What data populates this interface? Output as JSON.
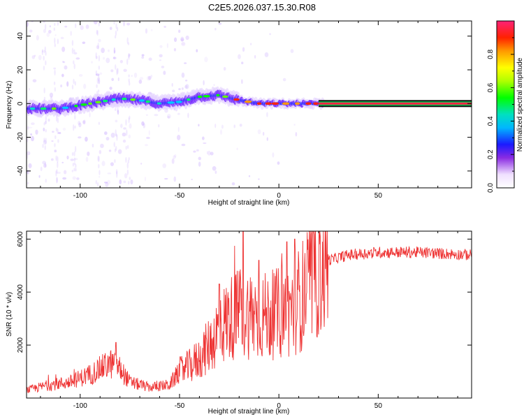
{
  "title": "C2E5.2026.037.15.30.R08",
  "chart_data": [
    {
      "type": "heatmap",
      "xlabel": "Height of straight line (km)",
      "ylabel": "Frequency (Hz)",
      "xlim": [
        -127,
        97
      ],
      "ylim": [
        -50,
        49
      ],
      "xticks": [
        -100,
        -50,
        0,
        50
      ],
      "yticks": [
        -40,
        -20,
        0,
        20,
        40
      ],
      "ridge": [
        {
          "x": -125,
          "y": -3
        },
        {
          "x": -110,
          "y": -3
        },
        {
          "x": -95,
          "y": 0
        },
        {
          "x": -80,
          "y": 3
        },
        {
          "x": -70,
          "y": 2
        },
        {
          "x": -60,
          "y": 0
        },
        {
          "x": -50,
          "y": 1
        },
        {
          "x": -40,
          "y": 4
        },
        {
          "x": -30,
          "y": 5
        },
        {
          "x": -20,
          "y": 2
        },
        {
          "x": -10,
          "y": 0
        },
        {
          "x": 0,
          "y": 0
        },
        {
          "x": 20,
          "y": 0
        },
        {
          "x": 95,
          "y": 0
        }
      ],
      "colorbar": {
        "label": "Normalized spectral amplitude",
        "range": [
          0,
          1
        ],
        "ticks": [
          "0.0",
          "0.2",
          "0.4",
          "0.6",
          "0.8"
        ]
      }
    },
    {
      "type": "line",
      "xlabel": "Height of straight line (km)",
      "ylabel": "SNR (10 * v/v)",
      "xlim": [
        -127,
        97
      ],
      "ylim": [
        0,
        6300
      ],
      "xticks": [
        -100,
        -50,
        0,
        50
      ],
      "yticks": [
        2000,
        4000,
        6000
      ],
      "color": "#ee3333",
      "series": [
        {
          "x": -127,
          "y": 300
        },
        {
          "x": -115,
          "y": 500
        },
        {
          "x": -105,
          "y": 600
        },
        {
          "x": -95,
          "y": 900
        },
        {
          "x": -85,
          "y": 1300
        },
        {
          "x": -80,
          "y": 1100
        },
        {
          "x": -75,
          "y": 600
        },
        {
          "x": -65,
          "y": 400
        },
        {
          "x": -55,
          "y": 500
        },
        {
          "x": -50,
          "y": 1000
        },
        {
          "x": -45,
          "y": 1200
        },
        {
          "x": -40,
          "y": 1500
        },
        {
          "x": -35,
          "y": 2000
        },
        {
          "x": -30,
          "y": 2600
        },
        {
          "x": -25,
          "y": 3000
        },
        {
          "x": -20,
          "y": 3200
        },
        {
          "x": -15,
          "y": 3200
        },
        {
          "x": -10,
          "y": 3100
        },
        {
          "x": -5,
          "y": 3100
        },
        {
          "x": 0,
          "y": 3200
        },
        {
          "x": 5,
          "y": 3300
        },
        {
          "x": 10,
          "y": 3700
        },
        {
          "x": 15,
          "y": 4200
        },
        {
          "x": 20,
          "y": 4800
        },
        {
          "x": 25,
          "y": 5200
        },
        {
          "x": 35,
          "y": 5400
        },
        {
          "x": 50,
          "y": 5500
        },
        {
          "x": 70,
          "y": 5500
        },
        {
          "x": 97,
          "y": 5400
        }
      ],
      "spikes": [
        {
          "x": -82,
          "y": 2100
        },
        {
          "x": -30,
          "y": 4300
        },
        {
          "x": -18,
          "y": 6300
        },
        {
          "x": -10,
          "y": 5200
        },
        {
          "x": 4,
          "y": 5900
        },
        {
          "x": 8,
          "y": 6000
        }
      ]
    }
  ]
}
